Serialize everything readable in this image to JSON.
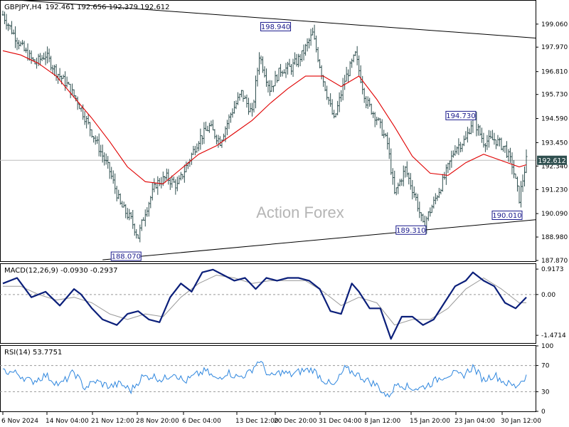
{
  "header": {
    "symbol": "GBPJPY,H4",
    "ohlc": "192.461 192.656 192.379 192.612"
  },
  "watermark": "Action Forex",
  "colors": {
    "price": "#2f4f4f",
    "ma": "#e00000",
    "macd_main": "#0b1f7a",
    "macd_signal": "#999999",
    "rsi": "#2e86de",
    "price_tag_bg": "#2f4f4f"
  },
  "chart_data": [
    {
      "type": "bar",
      "name": "price",
      "title": "GBPJPY,H4",
      "ylim": [
        187.87,
        200.1
      ],
      "y_ticks": [
        "199.060",
        "197.970",
        "196.810",
        "195.730",
        "194.590",
        "193.450",
        "192.340",
        "191.230",
        "190.090",
        "188.980",
        "187.870"
      ],
      "current_price": "192.612",
      "x_ticks": [
        "6 Nov 2024",
        "14 Nov 04:00",
        "21 Nov 12:00",
        "28 Nov 20:00",
        "6 Dec 04:00",
        "13 Dec 12:00",
        "20 Dec 20:00",
        "31 Dec 04:00",
        "8 Jan 12:00",
        "15 Jan 20:00",
        "23 Jan 04:00",
        "30 Jan 12:00"
      ],
      "close_path": [
        [
          0,
          199.5
        ],
        [
          3,
          198.6
        ],
        [
          6,
          197.8
        ],
        [
          9,
          197.2
        ],
        [
          12,
          197.6
        ],
        [
          15,
          196.8
        ],
        [
          18,
          196.2
        ],
        [
          21,
          195.4
        ],
        [
          24,
          194.3
        ],
        [
          27,
          193.2
        ],
        [
          30,
          192.1
        ],
        [
          33,
          190.5
        ],
        [
          36,
          189.8
        ],
        [
          38,
          189.0
        ],
        [
          40,
          190.2
        ],
        [
          43,
          191.5
        ],
        [
          46,
          191.8
        ],
        [
          49,
          191.4
        ],
        [
          52,
          192.5
        ],
        [
          55,
          193.6
        ],
        [
          58,
          194.2
        ],
        [
          61,
          193.5
        ],
        [
          64,
          194.8
        ],
        [
          67,
          195.8
        ],
        [
          70,
          194.8
        ],
        [
          72,
          197.6
        ],
        [
          75,
          196.0
        ],
        [
          78,
          196.9
        ],
        [
          81,
          197.0
        ],
        [
          84,
          197.6
        ],
        [
          87,
          198.6
        ],
        [
          90,
          196.4
        ],
        [
          93,
          194.5
        ],
        [
          96,
          196.4
        ],
        [
          99,
          197.6
        ],
        [
          102,
          195.4
        ],
        [
          105,
          194.6
        ],
        [
          108,
          193.4
        ],
        [
          110,
          191.0
        ],
        [
          113,
          192.2
        ],
        [
          116,
          190.8
        ],
        [
          118,
          189.5
        ],
        [
          121,
          190.6
        ],
        [
          124,
          191.8
        ],
        [
          127,
          193.2
        ],
        [
          130,
          193.6
        ],
        [
          132,
          194.6
        ],
        [
          135,
          193.5
        ],
        [
          138,
          193.6
        ],
        [
          141,
          193.2
        ],
        [
          143,
          192.4
        ],
        [
          145,
          190.8
        ],
        [
          147,
          192.6
        ]
      ],
      "moving_average": [
        [
          0,
          197.8
        ],
        [
          5,
          197.6
        ],
        [
          10,
          197.2
        ],
        [
          15,
          196.6
        ],
        [
          20,
          195.6
        ],
        [
          25,
          194.6
        ],
        [
          30,
          193.5
        ],
        [
          35,
          192.3
        ],
        [
          40,
          191.6
        ],
        [
          45,
          191.5
        ],
        [
          50,
          192.2
        ],
        [
          55,
          192.9
        ],
        [
          60,
          193.3
        ],
        [
          65,
          193.9
        ],
        [
          70,
          194.5
        ],
        [
          75,
          195.3
        ],
        [
          80,
          196.0
        ],
        [
          85,
          196.6
        ],
        [
          90,
          196.6
        ],
        [
          95,
          196.1
        ],
        [
          100,
          196.6
        ],
        [
          105,
          195.5
        ],
        [
          110,
          194.2
        ],
        [
          115,
          192.8
        ],
        [
          120,
          192.0
        ],
        [
          125,
          191.9
        ],
        [
          130,
          192.5
        ],
        [
          135,
          192.9
        ],
        [
          140,
          192.6
        ],
        [
          145,
          192.3
        ],
        [
          147,
          192.4
        ]
      ],
      "trend_lines": [
        {
          "from": [
            0,
            200.25
          ],
          "to": [
            147,
            198.4
          ]
        },
        {
          "from": [
            28,
            187.9
          ],
          "to": [
            147,
            189.8
          ]
        }
      ],
      "annotations": [
        {
          "label": "198.940",
          "x": 80,
          "y": 198.94
        },
        {
          "label": "188.070",
          "x": 38,
          "y": 188.07
        },
        {
          "label": "194.730",
          "x": 132,
          "y": 194.73
        },
        {
          "label": "189.310",
          "x": 118,
          "y": 189.31
        },
        {
          "label": "190.010",
          "x": 145,
          "y": 190.01
        }
      ]
    },
    {
      "type": "line",
      "name": "macd",
      "title": "MACD(12,26,9) -0.0930 -0.2937",
      "ylim": [
        -1.75,
        1.1
      ],
      "y_ticks": [
        "0.9173",
        "0.00",
        "-1.4714"
      ],
      "series": [
        {
          "values": [
            [
              0,
              0.4
            ],
            [
              4,
              0.6
            ],
            [
              8,
              -0.1
            ],
            [
              12,
              0.1
            ],
            [
              16,
              -0.4
            ],
            [
              20,
              0.2
            ],
            [
              22,
              0.0
            ],
            [
              25,
              -0.5
            ],
            [
              28,
              -0.9
            ],
            [
              32,
              -1.1
            ],
            [
              35,
              -0.7
            ],
            [
              38,
              -0.6
            ],
            [
              41,
              -0.9
            ],
            [
              44,
              -1.0
            ],
            [
              47,
              -0.1
            ],
            [
              50,
              0.4
            ],
            [
              53,
              0.1
            ],
            [
              56,
              0.8
            ],
            [
              59,
              0.9
            ],
            [
              62,
              0.7
            ],
            [
              65,
              0.5
            ],
            [
              68,
              0.6
            ],
            [
              71,
              0.2
            ],
            [
              74,
              0.6
            ],
            [
              77,
              0.5
            ],
            [
              80,
              0.6
            ],
            [
              83,
              0.6
            ],
            [
              86,
              0.5
            ],
            [
              89,
              0.2
            ],
            [
              92,
              -0.6
            ],
            [
              95,
              -0.7
            ],
            [
              98,
              0.4
            ],
            [
              100,
              0.1
            ],
            [
              103,
              -0.5
            ],
            [
              106,
              -0.5
            ],
            [
              109,
              -1.6
            ],
            [
              112,
              -0.8
            ],
            [
              115,
              -0.8
            ],
            [
              118,
              -1.1
            ],
            [
              121,
              -0.9
            ],
            [
              124,
              -0.3
            ],
            [
              127,
              0.3
            ],
            [
              130,
              0.5
            ],
            [
              132,
              0.8
            ],
            [
              135,
              0.5
            ],
            [
              138,
              0.3
            ],
            [
              141,
              -0.3
            ],
            [
              144,
              -0.5
            ],
            [
              147,
              -0.1
            ]
          ]
        },
        {
          "values": [
            [
              0,
              0.3
            ],
            [
              5,
              0.3
            ],
            [
              10,
              0.0
            ],
            [
              15,
              -0.2
            ],
            [
              20,
              -0.1
            ],
            [
              25,
              -0.3
            ],
            [
              30,
              -0.7
            ],
            [
              35,
              -0.9
            ],
            [
              40,
              -0.7
            ],
            [
              45,
              -0.8
            ],
            [
              50,
              -0.1
            ],
            [
              55,
              0.4
            ],
            [
              60,
              0.7
            ],
            [
              65,
              0.6
            ],
            [
              70,
              0.4
            ],
            [
              75,
              0.5
            ],
            [
              80,
              0.5
            ],
            [
              85,
              0.5
            ],
            [
              90,
              0.1
            ],
            [
              95,
              -0.4
            ],
            [
              100,
              -0.1
            ],
            [
              105,
              -0.3
            ],
            [
              110,
              -1.1
            ],
            [
              115,
              -0.9
            ],
            [
              120,
              -0.9
            ],
            [
              125,
              -0.5
            ],
            [
              130,
              0.2
            ],
            [
              135,
              0.6
            ],
            [
              140,
              0.2
            ],
            [
              145,
              -0.3
            ],
            [
              147,
              -0.3
            ]
          ]
        }
      ]
    },
    {
      "type": "line",
      "name": "rsi",
      "title": "RSI(14) 53.7751",
      "ylim": [
        0,
        100
      ],
      "y_ticks": [
        "100",
        "70",
        "30",
        "0"
      ],
      "levels": [
        70,
        30
      ],
      "series": [
        {
          "values": [
            [
              0,
              62
            ],
            [
              4,
              58
            ],
            [
              8,
              45
            ],
            [
              12,
              55
            ],
            [
              16,
              40
            ],
            [
              20,
              60
            ],
            [
              23,
              36
            ],
            [
              26,
              46
            ],
            [
              30,
              38
            ],
            [
              33,
              42
            ],
            [
              36,
              32
            ],
            [
              39,
              52
            ],
            [
              42,
              54
            ],
            [
              45,
              48
            ],
            [
              48,
              60
            ],
            [
              51,
              45
            ],
            [
              54,
              55
            ],
            [
              57,
              62
            ],
            [
              60,
              48
            ],
            [
              63,
              60
            ],
            [
              66,
              52
            ],
            [
              69,
              58
            ],
            [
              72,
              78
            ],
            [
              75,
              52
            ],
            [
              78,
              60
            ],
            [
              81,
              56
            ],
            [
              84,
              62
            ],
            [
              87,
              64
            ],
            [
              90,
              48
            ],
            [
              93,
              38
            ],
            [
              96,
              65
            ],
            [
              99,
              58
            ],
            [
              102,
              48
            ],
            [
              105,
              40
            ],
            [
              108,
              22
            ],
            [
              111,
              44
            ],
            [
              114,
              36
            ],
            [
              117,
              35
            ],
            [
              120,
              42
            ],
            [
              123,
              52
            ],
            [
              126,
              58
            ],
            [
              129,
              54
            ],
            [
              132,
              68
            ],
            [
              135,
              48
            ],
            [
              138,
              56
            ],
            [
              141,
              44
            ],
            [
              144,
              38
            ],
            [
              147,
              54
            ]
          ]
        }
      ]
    }
  ]
}
